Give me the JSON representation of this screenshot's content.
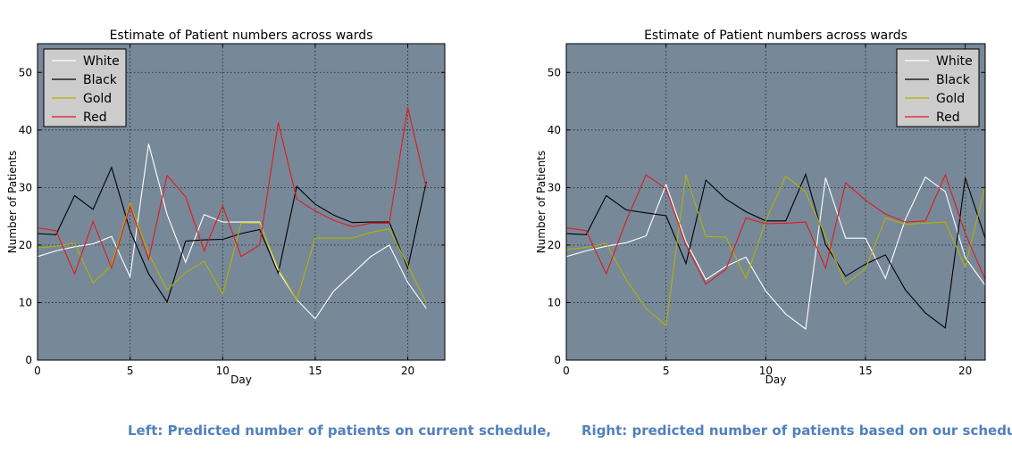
{
  "captions": {
    "left": "Left: Predicted number of patients on current schedule,",
    "right": "Right: predicted number of patients based on our schedule"
  },
  "chart_data": [
    {
      "type": "line",
      "title": "Estimate of Patient numbers across wards",
      "xlabel": "Day",
      "ylabel": "Number of Patients",
      "xlim": [
        0,
        22
      ],
      "ylim": [
        0,
        55
      ],
      "xticks": [
        0,
        5,
        10,
        15,
        20
      ],
      "yticks": [
        0,
        10,
        20,
        30,
        40,
        50
      ],
      "grid": true,
      "legend_position": "top-left",
      "plot_background": "#778899",
      "x": [
        0,
        1,
        2,
        3,
        4,
        5,
        6,
        7,
        8,
        9,
        10,
        11,
        12,
        13,
        14,
        15,
        16,
        17,
        18,
        19,
        20,
        21
      ],
      "series": [
        {
          "name": "White",
          "color": "#ffffff",
          "values": [
            18,
            19,
            19.7,
            20.2,
            21.5,
            14.5,
            37.6,
            25.3,
            17,
            25.3,
            24,
            24,
            24,
            15.5,
            10.5,
            7.2,
            12,
            15,
            18,
            20,
            13.5,
            9
          ]
        },
        {
          "name": "Black",
          "color": "#000000",
          "values": [
            22,
            21.8,
            28.6,
            26.2,
            33.5,
            22.5,
            15,
            10.1,
            20.7,
            20.9,
            21,
            22,
            22.7,
            15.1,
            30.2,
            27.1,
            25.2,
            23.9,
            24,
            24,
            16,
            31
          ]
        },
        {
          "name": "Gold",
          "color": "#b3b300",
          "values": [
            19.5,
            19.8,
            20.3,
            13.4,
            16.5,
            27.3,
            18.5,
            12.2,
            15.2,
            17.2,
            11.5,
            23.8,
            23.8,
            16,
            10.5,
            21.2,
            21.2,
            21.2,
            22.2,
            22.8,
            16.5,
            10
          ]
        },
        {
          "name": "Red",
          "color": "#e31a1c",
          "values": [
            23,
            22.5,
            15,
            24.1,
            16,
            26.8,
            17.5,
            32.1,
            28.4,
            19,
            26.8,
            18,
            20,
            41.3,
            28,
            25.9,
            24.3,
            23.2,
            23.8,
            23.8,
            44,
            30
          ]
        }
      ]
    },
    {
      "type": "line",
      "title": "Estimate of Patient numbers across wards",
      "xlabel": "Day",
      "ylabel": "Number of Patients",
      "xlim": [
        0,
        21
      ],
      "ylim": [
        0,
        55
      ],
      "xticks": [
        0,
        5,
        10,
        15,
        20
      ],
      "yticks": [
        0,
        10,
        20,
        30,
        40,
        50
      ],
      "grid": true,
      "legend_position": "top-right",
      "plot_background": "#778899",
      "x": [
        0,
        1,
        2,
        3,
        4,
        5,
        6,
        7,
        8,
        9,
        10,
        11,
        12,
        13,
        14,
        15,
        16,
        17,
        18,
        19,
        20,
        21
      ],
      "series": [
        {
          "name": "White",
          "color": "#ffffff",
          "values": [
            18,
            19,
            19.8,
            20.4,
            21.6,
            30.5,
            20.6,
            14,
            16.3,
            17.9,
            12,
            8,
            5.4,
            31.7,
            21.2,
            21.2,
            14.2,
            24.5,
            31.8,
            29.3,
            17.8,
            13
          ]
        },
        {
          "name": "Black",
          "color": "#000000",
          "values": [
            22,
            21.8,
            28.6,
            26.1,
            25.6,
            25.1,
            16.8,
            31.3,
            28,
            25.8,
            24.2,
            24.2,
            32.3,
            20.1,
            14.6,
            16.7,
            18.3,
            12.2,
            8.2,
            5.6,
            31.7,
            21.2
          ]
        },
        {
          "name": "Gold",
          "color": "#b3b300",
          "values": [
            19.2,
            19.6,
            20.3,
            14,
            9,
            6,
            32.2,
            21.5,
            21.4,
            14.2,
            24.2,
            32,
            29.2,
            21.5,
            13.2,
            15.9,
            24.7,
            23.6,
            23.8,
            24,
            16.2,
            30.3
          ]
        },
        {
          "name": "Red",
          "color": "#e31a1c",
          "values": [
            23,
            22.5,
            15,
            24.2,
            32.2,
            29.8,
            20,
            13.2,
            15.8,
            24.7,
            23.7,
            23.8,
            24,
            16,
            30.8,
            27.8,
            25.4,
            24,
            24.2,
            32.2,
            22,
            14
          ]
        }
      ]
    }
  ]
}
